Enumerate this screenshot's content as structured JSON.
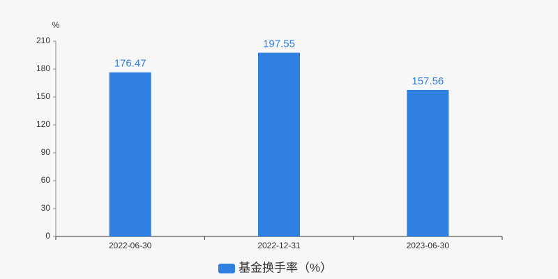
{
  "chart_data": {
    "type": "bar",
    "y_unit": "%",
    "categories": [
      "2022-06-30",
      "2022-12-31",
      "2023-06-30"
    ],
    "series": [
      {
        "name": "基金换手率（%）",
        "color": "#2f80e0",
        "values": [
          176.47,
          197.55,
          157.56
        ]
      }
    ],
    "ylim": [
      0,
      210
    ],
    "yticks": [
      0,
      30,
      60,
      90,
      120,
      150,
      180,
      210
    ],
    "grid": false,
    "legend": "bottom"
  }
}
